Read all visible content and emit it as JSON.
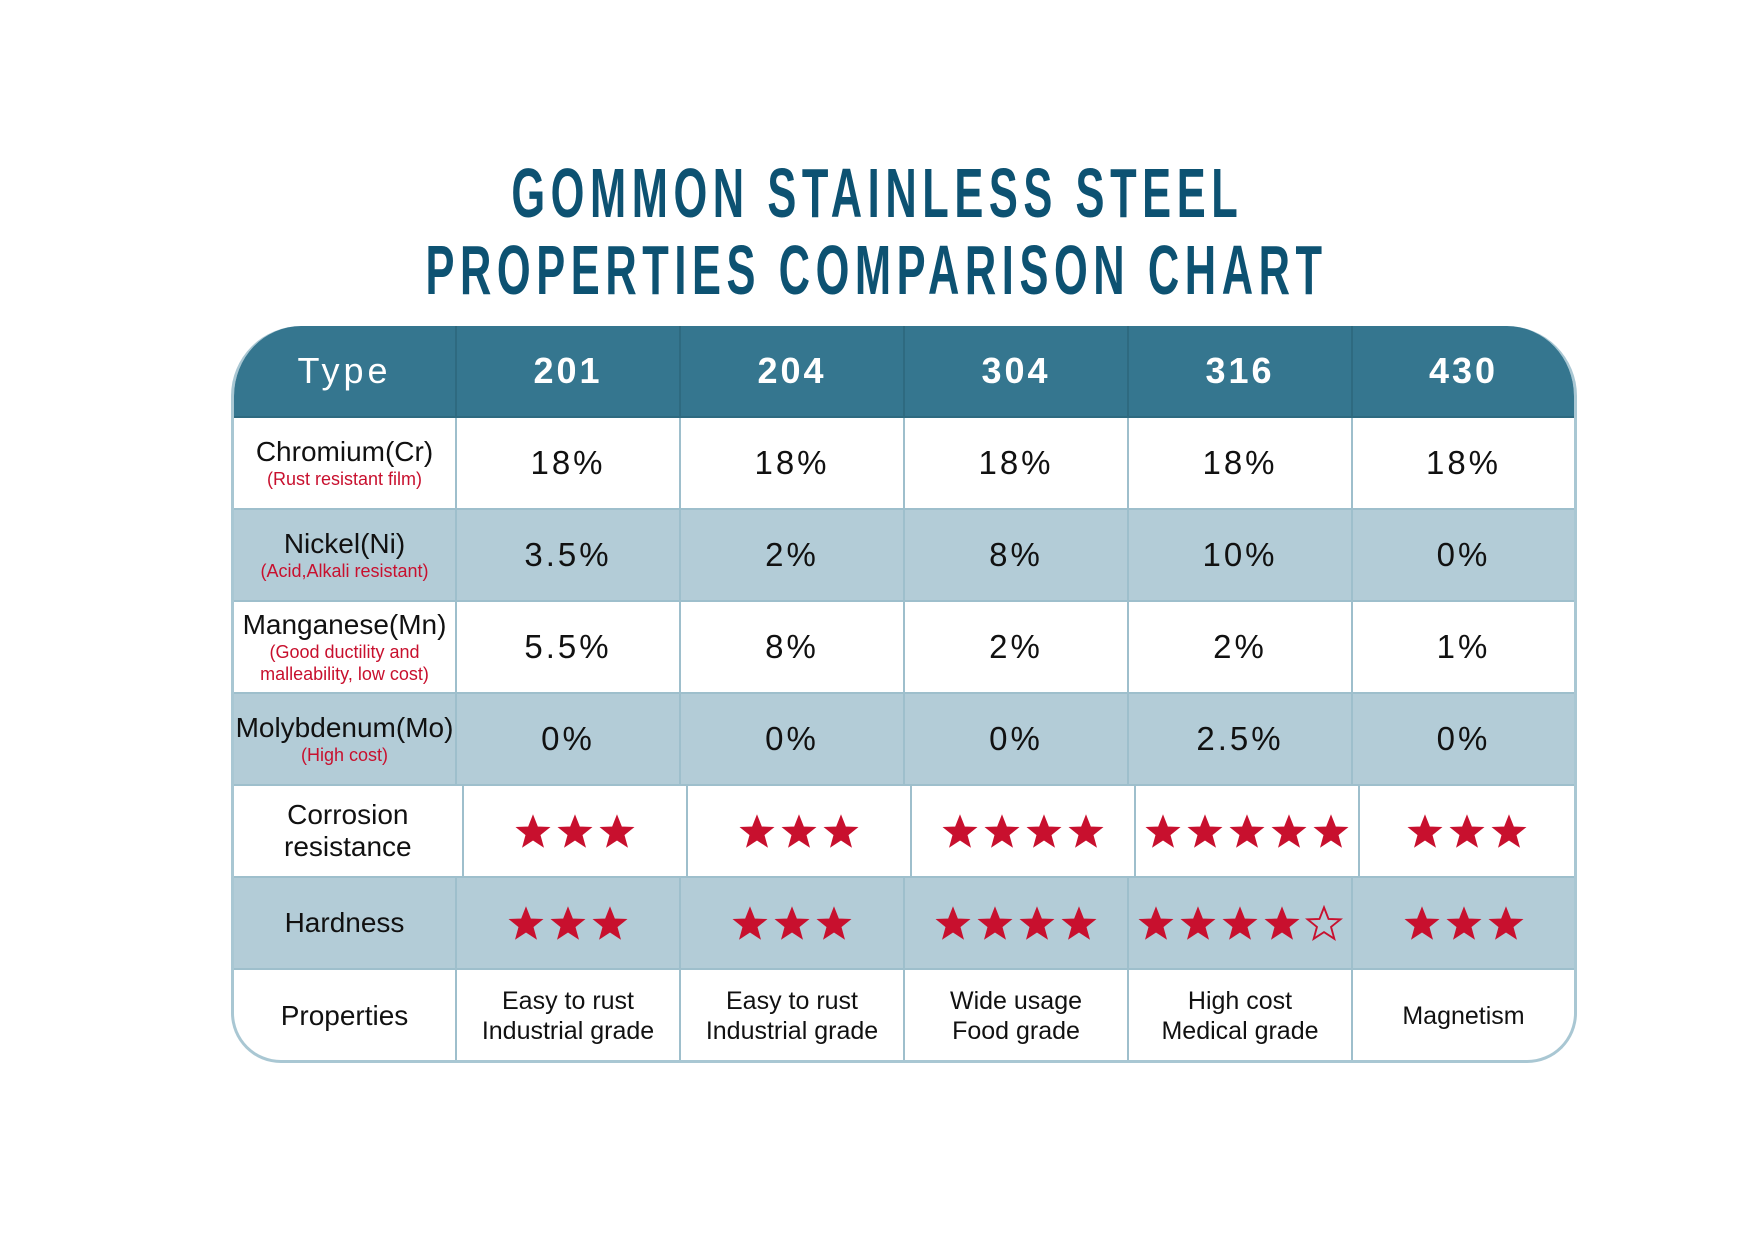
{
  "title": [
    "GOMMON STAINLESS STEEL",
    "PROPERTIES COMPARISON CHART"
  ],
  "colors": {
    "title": "#0d5272",
    "header": "#35768f",
    "band": "#b3ccd7",
    "star": "#c8102e"
  },
  "chart_data": {
    "type": "table",
    "header": [
      "Type",
      "201",
      "204",
      "304",
      "316",
      "430"
    ],
    "rows": [
      {
        "label": "Chromium(Cr)",
        "note": "(Rust resistant film)",
        "values": [
          "18%",
          "18%",
          "18%",
          "18%",
          "18%"
        ]
      },
      {
        "label": "Nickel(Ni)",
        "note": "(Acid,Alkali resistant)",
        "values": [
          "3.5%",
          "2%",
          "8%",
          "10%",
          "0%"
        ]
      },
      {
        "label": "Manganese(Mn)",
        "note": "(Good ductility and malleability, low cost)",
        "values": [
          "5.5%",
          "8%",
          "2%",
          "2%",
          "1%"
        ]
      },
      {
        "label": "Molybdenum(Mo)",
        "note": "(High cost)",
        "values": [
          "0%",
          "0%",
          "0%",
          "2.5%",
          "0%"
        ]
      },
      {
        "label": "Corrosion resistance",
        "stars": [
          3,
          3,
          4,
          5,
          3
        ],
        "max_stars": [
          3,
          3,
          4,
          5,
          3
        ]
      },
      {
        "label": "Hardness",
        "stars": [
          3,
          3,
          4,
          4,
          3
        ],
        "max_stars": [
          3,
          3,
          4,
          5,
          3
        ]
      },
      {
        "label": "Properties",
        "values": [
          [
            "Easy to rust",
            "Industrial grade"
          ],
          [
            "Easy to rust",
            "Industrial grade"
          ],
          [
            "Wide usage",
            "Food grade"
          ],
          [
            "High cost",
            "Medical grade"
          ],
          [
            "Magnetism"
          ]
        ]
      }
    ]
  }
}
